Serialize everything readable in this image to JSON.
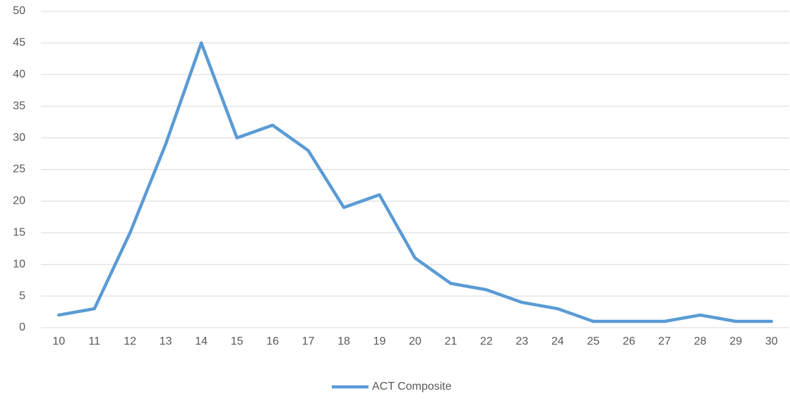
{
  "chart_data": {
    "type": "line",
    "categories": [
      "10",
      "11",
      "12",
      "13",
      "14",
      "15",
      "16",
      "17",
      "18",
      "19",
      "20",
      "21",
      "22",
      "23",
      "24",
      "25",
      "26",
      "27",
      "28",
      "29",
      "30"
    ],
    "series": [
      {
        "name": "ACT Composite",
        "color": "#5b9bd5",
        "values": [
          2,
          3,
          15,
          29,
          45,
          30,
          32,
          28,
          19,
          21,
          11,
          7,
          6,
          4,
          3,
          1,
          1,
          1,
          2,
          1,
          1
        ]
      }
    ],
    "ylim": [
      0,
      50
    ],
    "yticks": [
      0,
      5,
      10,
      15,
      20,
      25,
      30,
      35,
      40,
      45,
      50
    ],
    "grid": true,
    "legend": "bottom"
  }
}
